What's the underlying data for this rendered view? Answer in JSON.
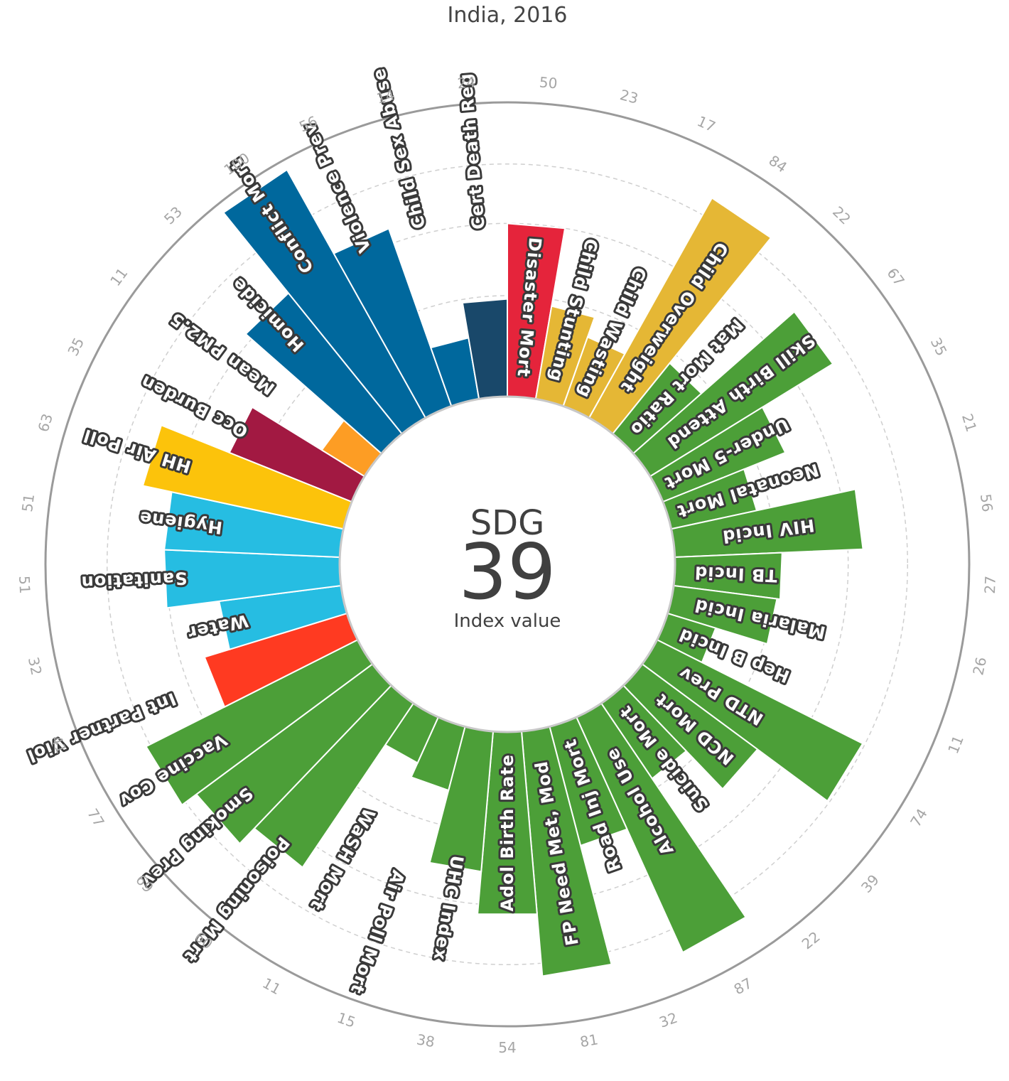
{
  "chart_data": {
    "type": "radial-bar",
    "title": "India, 2016",
    "center": {
      "heading": "SDG",
      "value": "39",
      "caption": "Index value"
    },
    "bars": [
      {
        "label": "Disaster Mort",
        "value": 50,
        "color": "#e5243b"
      },
      {
        "label": "Child Stunting",
        "value": 23,
        "color": "#e5b735"
      },
      {
        "label": "Child Wasting",
        "value": 17,
        "color": "#e5b735"
      },
      {
        "label": "Child Overweight",
        "value": 84,
        "color": "#e5b735"
      },
      {
        "label": "Mat Mort Ratio",
        "value": 22,
        "color": "#4c9f38"
      },
      {
        "label": "Skill Birth Attend",
        "value": 67,
        "color": "#4c9f38"
      },
      {
        "label": "Under-5 Mort",
        "value": 35,
        "color": "#4c9f38"
      },
      {
        "label": "Neonatal Mort",
        "value": 21,
        "color": "#4c9f38"
      },
      {
        "label": "HIV Incid",
        "value": 56,
        "color": "#4c9f38"
      },
      {
        "label": "TB Incid",
        "value": 27,
        "color": "#4c9f38"
      },
      {
        "label": "Malaria Incid",
        "value": 26,
        "color": "#4c9f38"
      },
      {
        "label": "Hep B Incid",
        "value": 11,
        "color": "#4c9f38"
      },
      {
        "label": "NTD Prev",
        "value": 74,
        "color": "#4c9f38"
      },
      {
        "label": "NCD Mort",
        "value": 39,
        "color": "#4c9f38"
      },
      {
        "label": "Suicide Mort",
        "value": 22,
        "color": "#4c9f38"
      },
      {
        "label": "Alcohol Use",
        "value": 87,
        "color": "#4c9f38"
      },
      {
        "label": "Road Inj Mort",
        "value": 32,
        "color": "#4c9f38"
      },
      {
        "label": "FP Need Met, Mod",
        "value": 81,
        "color": "#4c9f38"
      },
      {
        "label": "Adol Birth Rate",
        "value": 54,
        "color": "#4c9f38"
      },
      {
        "label": "UHC Index",
        "value": 38,
        "color": "#4c9f38"
      },
      {
        "label": "Air Poll Mort",
        "value": 15,
        "color": "#4c9f38"
      },
      {
        "label": "WaSH Mort",
        "value": 11,
        "color": "#4c9f38"
      },
      {
        "label": "Poisoning Mort",
        "value": 60,
        "color": "#4c9f38"
      },
      {
        "label": "Smoking Prev",
        "value": 69,
        "color": "#4c9f38"
      },
      {
        "label": "Vaccine Cov",
        "value": 77,
        "color": "#4c9f38"
      },
      {
        "label": "Int Partner Viol",
        "value": 41,
        "color": "#ff3a21"
      },
      {
        "label": "Water",
        "value": 32,
        "color": "#26bde2"
      },
      {
        "label": "Sanitation",
        "value": 51,
        "color": "#26bde2"
      },
      {
        "label": "Hygiene",
        "value": 51,
        "color": "#26bde2"
      },
      {
        "label": "HH Air Poll",
        "value": 63,
        "color": "#fcc30b"
      },
      {
        "label": "Occ Burden",
        "value": 35,
        "color": "#a21942"
      },
      {
        "label": "Mean PM2.5",
        "value": 11,
        "color": "#fd9d24"
      },
      {
        "label": "Homicide",
        "value": 53,
        "color": "#00689d"
      },
      {
        "label": "Conflict Mort",
        "value": 100,
        "color": "#00689d"
      },
      {
        "label": "Violence Prev",
        "value": 56,
        "color": "#00689d"
      },
      {
        "label": "Child Sex Abuse",
        "value": 14,
        "color": "#00689d"
      },
      {
        "label": "Cert Death Reg",
        "value": 24,
        "color": "#19486a"
      }
    ],
    "ylim": [
      0,
      100
    ],
    "grid": true
  }
}
